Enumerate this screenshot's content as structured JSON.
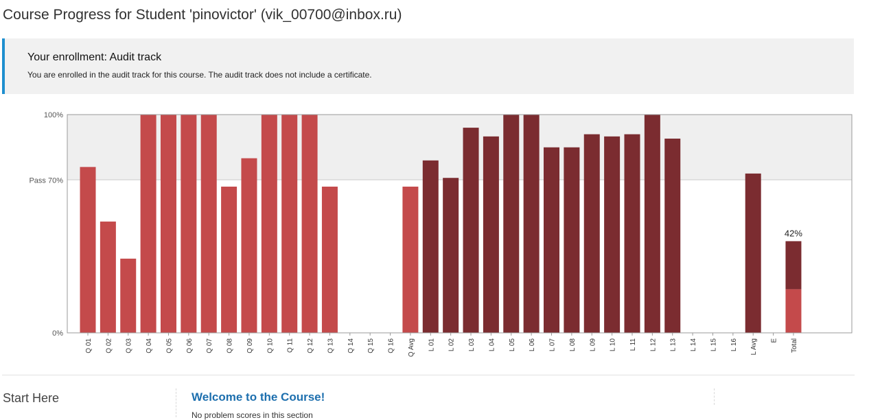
{
  "page": {
    "title": "Course Progress for Student 'pinovictor' (vik_00700@inbox.ru)"
  },
  "enrollment": {
    "title": "Your enrollment: Audit track",
    "message": "You are enrolled in the audit track for this course. The audit track does not include a certificate."
  },
  "chart_data": {
    "type": "bar",
    "categories": [
      "Q 01",
      "Q 02",
      "Q 03",
      "Q 04",
      "Q 05",
      "Q 06",
      "Q 07",
      "Q 08",
      "Q 09",
      "Q 10",
      "Q 11",
      "Q 12",
      "Q 13",
      "Q 14",
      "Q 15",
      "Q 16",
      "Q Avg",
      "L 01",
      "L 02",
      "L 03",
      "L 04",
      "L 05",
      "L 06",
      "L 07",
      "L 08",
      "L 09",
      "L 10",
      "L 11",
      "L 12",
      "L 13",
      "L 14",
      "L 15",
      "L 16",
      "L Avg",
      "E",
      "Total"
    ],
    "values": [
      76,
      51,
      34,
      100,
      100,
      100,
      100,
      67,
      80,
      100,
      100,
      100,
      67,
      0,
      0,
      0,
      67,
      79,
      71,
      94,
      90,
      100,
      100,
      85,
      85,
      91,
      90,
      91,
      100,
      89,
      0,
      0,
      0,
      73,
      0,
      42
    ],
    "groups": [
      "Q",
      "Q",
      "Q",
      "Q",
      "Q",
      "Q",
      "Q",
      "Q",
      "Q",
      "Q",
      "Q",
      "Q",
      "Q",
      "Q",
      "Q",
      "Q",
      "Q",
      "L",
      "L",
      "L",
      "L",
      "L",
      "L",
      "L",
      "L",
      "L",
      "L",
      "L",
      "L",
      "L",
      "L",
      "L",
      "L",
      "L",
      "E",
      "Total"
    ],
    "total_breakdown": {
      "Q": 20,
      "L": 22
    },
    "total_label": "42%",
    "ylim": [
      0,
      100
    ],
    "y_ticks": [
      {
        "value": 100,
        "label": "100%"
      },
      {
        "value": 70,
        "label": "Pass 70%"
      },
      {
        "value": 0,
        "label": "0%"
      }
    ],
    "pass_threshold": 70,
    "colors": {
      "Q": "#c44a4b",
      "L": "#7b2c30",
      "above_pass_band": "#efefef",
      "frame": "#999999"
    },
    "grid": false,
    "legend": "none"
  },
  "course": {
    "section_title": "Start Here",
    "subsection_title": "Welcome to the Course!",
    "no_scores_text": "No problem scores in this section"
  }
}
